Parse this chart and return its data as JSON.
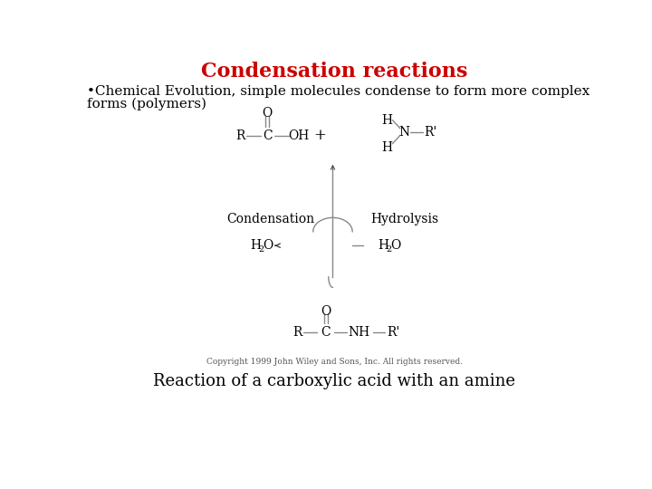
{
  "title": "Condensation reactions",
  "title_color": "#cc0000",
  "title_fontsize": 16,
  "subtitle_line1": "•Chemical Evolution, simple molecules condense to form more complex",
  "subtitle_line2": "forms (polymers)",
  "subtitle_fontsize": 11,
  "caption": "Reaction of a carboxylic acid with an amine",
  "caption_fontsize": 13,
  "copyright": "Copyright 1999 John Wiley and Sons, Inc. All rights reserved.",
  "copyright_fontsize": 6.5,
  "background_color": "#ffffff",
  "text_color": "#000000",
  "chem_fontsize": 10,
  "label_fontsize": 10
}
